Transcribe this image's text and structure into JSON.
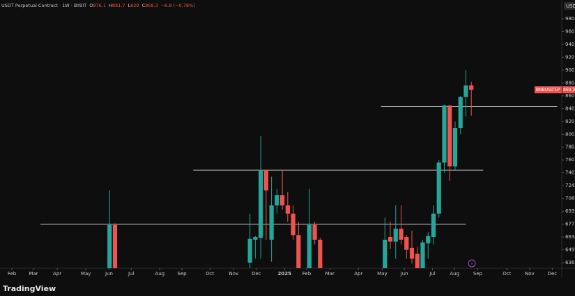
{
  "chart_data": {
    "type": "candlestick",
    "symbol": "USDT Perpetual Contract · 1W · BYBIT",
    "ohlc_labels": [
      "O",
      "H",
      "L",
      "C"
    ],
    "change": "−6.8 (−0.78%)",
    "currency": "USD",
    "symbol_tag": "BNBUSDT.P",
    "watermark": "TradingView",
    "up_color": "#26a69a",
    "down_color": "#ef5350",
    "open": [
      null,
      null,
      null,
      null,
      null,
      null,
      null,
      null,
      null,
      null,
      null,
      null,
      null,
      null,
      null,
      null,
      null,
      null,
      null,
      630,
      676,
      null,
      null,
      null,
      null,
      null,
      null,
      null,
      null,
      null,
      null,
      null,
      null,
      null,
      null,
      null,
      null,
      null,
      null,
      null,
      null,
      null,
      null,
      null,
      null,
      636,
      660,
      662,
      744,
      660,
      700,
      712,
      700,
      690,
      665,
      null,
      630,
      676,
      660,
      null,
      null,
      null,
      null,
      null,
      null,
      null,
      null,
      null,
      null,
      null,
      630,
      663,
      658,
      672,
      663,
      651,
      645,
      630,
      656,
      663,
      690,
      756,
      845,
      750,
      810,
      858,
      876.1
    ],
    "high": [
      null,
      null,
      null,
      null,
      null,
      null,
      null,
      null,
      null,
      null,
      null,
      null,
      null,
      null,
      null,
      null,
      null,
      null,
      null,
      718,
      678,
      null,
      null,
      null,
      null,
      null,
      null,
      null,
      null,
      null,
      null,
      null,
      null,
      null,
      null,
      null,
      null,
      null,
      null,
      null,
      null,
      null,
      null,
      null,
      null,
      690,
      664,
      797,
      745,
      735,
      720,
      744,
      716,
      700,
      680,
      null,
      720,
      680,
      662,
      null,
      null,
      null,
      null,
      null,
      null,
      null,
      null,
      null,
      null,
      null,
      685,
      680,
      700,
      700,
      665,
      670,
      652,
      660,
      668,
      700,
      760,
      846,
      846,
      820,
      860,
      900,
      881.7
    ],
    "low": [
      null,
      null,
      null,
      null,
      null,
      null,
      null,
      null,
      null,
      null,
      null,
      null,
      null,
      null,
      null,
      null,
      null,
      null,
      null,
      625,
      625,
      null,
      null,
      null,
      null,
      null,
      null,
      null,
      null,
      null,
      null,
      null,
      null,
      null,
      null,
      null,
      null,
      null,
      null,
      null,
      null,
      null,
      null,
      null,
      null,
      625,
      640,
      640,
      660,
      637,
      690,
      695,
      680,
      660,
      625,
      null,
      625,
      655,
      625,
      null,
      null,
      null,
      null,
      null,
      null,
      null,
      null,
      null,
      null,
      null,
      625,
      650,
      640,
      655,
      640,
      635,
      625,
      625,
      640,
      655,
      685,
      740,
      730,
      745,
      800,
      828,
      829.0
    ],
    "close": [
      null,
      null,
      null,
      null,
      null,
      null,
      null,
      null,
      null,
      null,
      null,
      null,
      null,
      null,
      null,
      null,
      null,
      null,
      null,
      676,
      630,
      null,
      null,
      null,
      null,
      null,
      null,
      null,
      null,
      null,
      null,
      null,
      null,
      null,
      null,
      null,
      null,
      null,
      null,
      null,
      null,
      null,
      null,
      null,
      null,
      661,
      663,
      744,
      718,
      700,
      712,
      700,
      690,
      665,
      630,
      null,
      676,
      660,
      630,
      null,
      null,
      null,
      null,
      null,
      null,
      null,
      null,
      null,
      null,
      null,
      660,
      658,
      672,
      660,
      649,
      640,
      630,
      657,
      664,
      690,
      756,
      845,
      750,
      810,
      858,
      876.1,
      869.3
    ],
    "levels": [
      677,
      744,
      843
    ],
    "xlim": [
      -1.3,
      102.5
    ],
    "xticks": [
      {
        "value": 0.9,
        "label": "Feb"
      },
      {
        "value": 4.9,
        "label": "Mar"
      },
      {
        "value": 9.3,
        "label": "Apr"
      },
      {
        "value": 14.6,
        "label": "May"
      },
      {
        "value": 18.9,
        "label": "Jun"
      },
      {
        "value": 23,
        "label": "Jul"
      },
      {
        "value": 28.3,
        "label": "Aug"
      },
      {
        "value": 32.4,
        "label": "Sep"
      },
      {
        "value": 37.6,
        "label": "Oct"
      },
      {
        "value": 42,
        "label": "Nov"
      },
      {
        "value": 46.2,
        "label": "Dec"
      },
      {
        "value": 51.4,
        "label": "2025"
      },
      {
        "value": 55.5,
        "label": "Feb"
      },
      {
        "value": 59.8,
        "label": "Mar"
      },
      {
        "value": 65.1,
        "label": "Apr"
      },
      {
        "value": 69.5,
        "label": "May"
      },
      {
        "value": 73.6,
        "label": "Jun"
      },
      {
        "value": 78.8,
        "label": "Jul"
      },
      {
        "value": 82.9,
        "label": "Aug"
      },
      {
        "value": 87.2,
        "label": "Sep"
      },
      {
        "value": 92.6,
        "label": "Oct"
      },
      {
        "value": 96.8,
        "label": "Nov"
      },
      {
        "value": 101,
        "label": "Dec"
      }
    ],
    "ylim": [
      620,
      990
    ],
    "yticks": [
      636,
      649,
      663,
      677,
      693,
      708,
      724,
      740,
      760,
      780,
      800,
      820,
      840,
      860,
      880,
      900,
      920,
      940,
      960,
      980
    ]
  }
}
